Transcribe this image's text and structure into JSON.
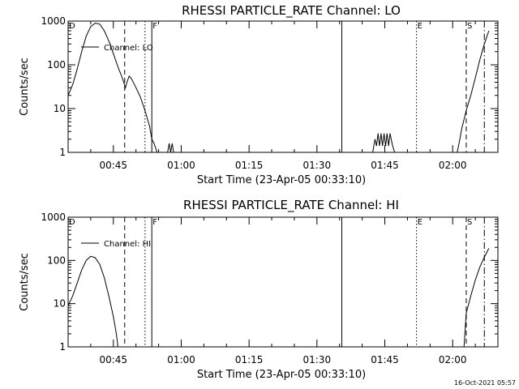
{
  "footer": "16-Oct-2021 05:57",
  "chart_data": [
    {
      "type": "line",
      "title": "RHESSI PARTICLE_RATE Channel: LO",
      "xlabel": "Start Time (23-Apr-05 00:33:10)",
      "ylabel": "Counts/sec",
      "y_scale": "log",
      "ylim": [
        1,
        1000
      ],
      "yticks": [
        "1",
        "10",
        "100",
        "1000"
      ],
      "xlim": [
        "00:35:00",
        "02:10:00"
      ],
      "xticks": [
        "00:45",
        "01:00",
        "01:15",
        "01:30",
        "01:45",
        "02:00"
      ],
      "legend": {
        "label": "Channel: LO",
        "position": "top-left"
      },
      "markers": [
        {
          "label": "D",
          "time": "00:35:00",
          "style": "none"
        },
        {
          "label": "",
          "time": "00:47:30",
          "style": "dashed"
        },
        {
          "label": "",
          "time": "00:52:00",
          "style": "dotted"
        },
        {
          "label": "F",
          "time": "00:53:30",
          "style": "solid"
        },
        {
          "label": "",
          "time": "01:35:30",
          "style": "solid"
        },
        {
          "label": "E",
          "time": "01:52:00",
          "style": "dotted"
        },
        {
          "label": "S",
          "time": "02:03:00",
          "style": "dashed"
        },
        {
          "label": "",
          "time": "02:07:00",
          "style": "dashdot"
        }
      ],
      "series": [
        {
          "name": "Channel: LO",
          "segments": [
            [
              [
                "00:35:00",
                20
              ],
              [
                "00:36:00",
                35
              ],
              [
                "00:37:00",
                80
              ],
              [
                "00:38:00",
                200
              ],
              [
                "00:39:00",
                450
              ],
              [
                "00:40:00",
                750
              ],
              [
                "00:41:00",
                900
              ],
              [
                "00:42:00",
                850
              ],
              [
                "00:43:00",
                600
              ],
              [
                "00:44:00",
                350
              ],
              [
                "00:45:00",
                180
              ],
              [
                "00:46:00",
                90
              ],
              [
                "00:47:00",
                50
              ],
              [
                "00:47:40",
                30
              ],
              [
                "00:48:00",
                40
              ],
              [
                "00:48:30",
                55
              ],
              [
                "00:49:00",
                48
              ],
              [
                "00:50:00",
                30
              ],
              [
                "00:51:00",
                18
              ],
              [
                "00:52:00",
                9
              ],
              [
                "00:53:00",
                4
              ],
              [
                "00:53:30",
                2
              ],
              [
                "00:54:00",
                1.6
              ],
              [
                "00:54:40",
                1
              ]
            ],
            [
              [
                "00:57:00",
                1
              ],
              [
                "00:57:20",
                1.6
              ],
              [
                "00:57:40",
                1
              ],
              [
                "00:58:00",
                1.6
              ],
              [
                "00:58:20",
                1
              ]
            ],
            [
              [
                "01:42:20",
                1
              ],
              [
                "01:42:50",
                2
              ],
              [
                "01:43:10",
                1.4
              ],
              [
                "01:43:30",
                2.7
              ],
              [
                "01:43:50",
                1.4
              ],
              [
                "01:44:10",
                2.7
              ],
              [
                "01:44:30",
                1.4
              ],
              [
                "01:44:50",
                2.7
              ],
              [
                "01:45:10",
                1.4
              ],
              [
                "01:45:30",
                2.7
              ],
              [
                "01:45:50",
                1.4
              ],
              [
                "01:46:10",
                2.7
              ],
              [
                "01:46:40",
                1.5
              ],
              [
                "01:47:10",
                1
              ]
            ],
            [
              [
                "02:01:00",
                1
              ],
              [
                "02:01:30",
                1.8
              ],
              [
                "02:02:00",
                3.5
              ],
              [
                "02:03:00",
                9
              ],
              [
                "02:04:00",
                20
              ],
              [
                "02:05:00",
                50
              ],
              [
                "02:06:00",
                130
              ],
              [
                "02:07:00",
                300
              ],
              [
                "02:08:00",
                600
              ]
            ]
          ]
        }
      ]
    },
    {
      "type": "line",
      "title": "RHESSI PARTICLE_RATE Channel: HI",
      "xlabel": "Start Time (23-Apr-05 00:33:10)",
      "ylabel": "Counts/sec",
      "y_scale": "log",
      "ylim": [
        1,
        1000
      ],
      "yticks": [
        "1",
        "10",
        "100",
        "1000"
      ],
      "xlim": [
        "00:35:00",
        "02:10:00"
      ],
      "xticks": [
        "00:45",
        "01:00",
        "01:15",
        "01:30",
        "01:45",
        "02:00"
      ],
      "legend": {
        "label": "Channel: HI",
        "position": "top-left"
      },
      "markers": [
        {
          "label": "D",
          "time": "00:35:00",
          "style": "none"
        },
        {
          "label": "",
          "time": "00:47:30",
          "style": "dashed"
        },
        {
          "label": "",
          "time": "00:52:00",
          "style": "dotted"
        },
        {
          "label": "F",
          "time": "00:53:30",
          "style": "solid"
        },
        {
          "label": "",
          "time": "01:35:30",
          "style": "solid"
        },
        {
          "label": "E",
          "time": "01:52:00",
          "style": "dotted"
        },
        {
          "label": "S",
          "time": "02:03:00",
          "style": "dashed"
        },
        {
          "label": "",
          "time": "02:07:00",
          "style": "dashdot"
        }
      ],
      "series": [
        {
          "name": "Channel: HI",
          "segments": [
            [
              [
                "00:35:00",
                9
              ],
              [
                "00:36:00",
                15
              ],
              [
                "00:37:00",
                30
              ],
              [
                "00:38:00",
                60
              ],
              [
                "00:39:00",
                100
              ],
              [
                "00:40:00",
                125
              ],
              [
                "00:41:00",
                115
              ],
              [
                "00:42:00",
                80
              ],
              [
                "00:43:00",
                40
              ],
              [
                "00:44:00",
                15
              ],
              [
                "00:45:00",
                5
              ],
              [
                "00:45:40",
                2
              ],
              [
                "00:46:00",
                1
              ]
            ],
            [
              [
                "02:02:30",
                1
              ],
              [
                "02:03:00",
                6
              ],
              [
                "02:04:00",
                15
              ],
              [
                "02:05:00",
                35
              ],
              [
                "02:06:00",
                70
              ],
              [
                "02:07:00",
                120
              ],
              [
                "02:08:00",
                190
              ]
            ]
          ]
        }
      ]
    }
  ]
}
